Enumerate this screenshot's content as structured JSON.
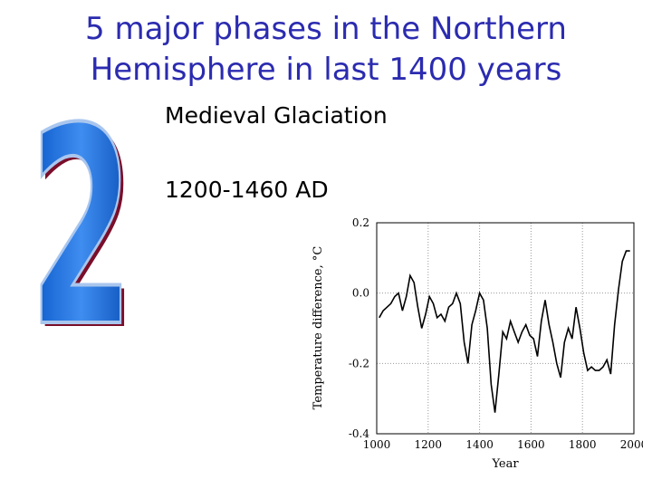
{
  "slide": {
    "title_line1": "5 major phases in the Northern",
    "title_line2": "Hemisphere in last 1400 years",
    "big_numeral": "2",
    "bullet1": "Medieval Glaciation",
    "bullet2": "1200-1460 AD"
  },
  "chart_data": {
    "type": "line",
    "xlabel": "Year",
    "ylabel": "Temperature difference, °C",
    "xlim": [
      1000,
      2000
    ],
    "ylim": [
      -0.4,
      0.2
    ],
    "xticks": [
      "1000",
      "1200",
      "1400",
      "1600",
      "1800",
      "2000"
    ],
    "yticks": [
      "0.2",
      "0.0",
      "-0.2",
      "-0.4"
    ],
    "grid": true,
    "x": [
      1010,
      1025,
      1040,
      1055,
      1070,
      1085,
      1100,
      1115,
      1130,
      1145,
      1160,
      1175,
      1190,
      1205,
      1220,
      1235,
      1250,
      1265,
      1280,
      1295,
      1310,
      1325,
      1340,
      1355,
      1370,
      1385,
      1400,
      1415,
      1430,
      1445,
      1460,
      1475,
      1490,
      1505,
      1520,
      1535,
      1550,
      1565,
      1580,
      1595,
      1610,
      1625,
      1640,
      1655,
      1670,
      1685,
      1700,
      1715,
      1730,
      1745,
      1760,
      1775,
      1790,
      1805,
      1820,
      1835,
      1850,
      1865,
      1880,
      1895,
      1910,
      1925,
      1940,
      1955,
      1970,
      1985
    ],
    "values": [
      -0.07,
      -0.05,
      -0.04,
      -0.03,
      -0.01,
      0.0,
      -0.05,
      -0.01,
      0.05,
      0.03,
      -0.04,
      -0.1,
      -0.06,
      -0.01,
      -0.03,
      -0.07,
      -0.06,
      -0.08,
      -0.04,
      -0.03,
      0.0,
      -0.03,
      -0.14,
      -0.2,
      -0.09,
      -0.05,
      0.0,
      -0.02,
      -0.1,
      -0.26,
      -0.34,
      -0.23,
      -0.11,
      -0.13,
      -0.08,
      -0.11,
      -0.14,
      -0.11,
      -0.09,
      -0.12,
      -0.13,
      -0.18,
      -0.08,
      -0.02,
      -0.09,
      -0.14,
      -0.2,
      -0.24,
      -0.14,
      -0.1,
      -0.13,
      -0.04,
      -0.1,
      -0.17,
      -0.22,
      -0.21,
      -0.22,
      -0.22,
      -0.21,
      -0.19,
      -0.23,
      -0.09,
      0.01,
      0.09,
      0.12,
      0.12
    ]
  }
}
